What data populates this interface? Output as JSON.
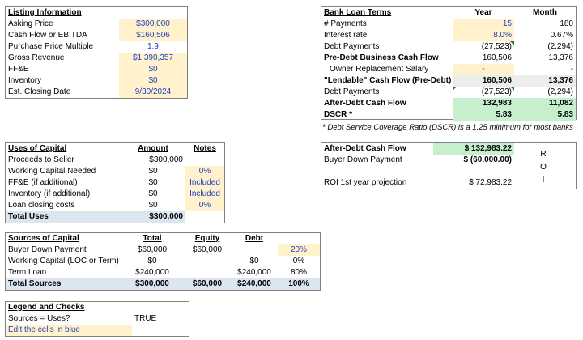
{
  "listing": {
    "title": "Listing Information",
    "rows": [
      {
        "label": "Asking Price",
        "value": "$300,000"
      },
      {
        "label": "Cash Flow or EBITDA",
        "value": "$160,506"
      },
      {
        "label": "Purchase Price Multiple",
        "value": "1.9"
      },
      {
        "label": "Gross Revenue",
        "value": "$1,390,357"
      },
      {
        "label": "FF&E",
        "value": "$0"
      },
      {
        "label": "Inventory",
        "value": "$0"
      },
      {
        "label": "Est. Closing Date",
        "value": "9/30/2024"
      }
    ]
  },
  "bank": {
    "title": "Bank Loan Terms",
    "col_year": "Year",
    "col_month": "Month",
    "rows": [
      {
        "label": "# Payments",
        "year": "15",
        "month": "180"
      },
      {
        "label": "Interest rate",
        "year": "8.0%",
        "month": "0.67%"
      },
      {
        "label": "Debt Payments",
        "year": "(27,523)",
        "month": "(2,294)"
      },
      {
        "label": "Pre-Debt Business Cash Flow",
        "year": "160,506",
        "month": "13,376"
      },
      {
        "label": "Owner Replacement Salary",
        "year": "-",
        "month": "-"
      },
      {
        "label": "\"Lendable\" Cash Flow (Pre-Debt)",
        "year": "160,506",
        "month": "13,376"
      },
      {
        "label": "Debt Payments",
        "year": "(27,523)",
        "month": "(2,294)"
      },
      {
        "label": "After-Debt Cash Flow",
        "year": "132,983",
        "month": "11,082"
      },
      {
        "label": "DSCR *",
        "year": "5.83",
        "month": "5.83"
      }
    ],
    "footnote": "* Debt Service Coverage Ratio (DSCR) is a 1.25 minimum for most banks"
  },
  "uses": {
    "title": "Uses of Capital",
    "col_amount": "Amount",
    "col_notes": "Notes",
    "rows": [
      {
        "label": "Proceeds to Seller",
        "amount": "$300,000",
        "note": ""
      },
      {
        "label": "Working Capital Needed",
        "amount": "$0",
        "note": "0%"
      },
      {
        "label": "FF&E (if additional)",
        "amount": "$0",
        "note": "Included"
      },
      {
        "label": "Inventory (if additional)",
        "amount": "$0",
        "note": "Included"
      },
      {
        "label": "Loan closing costs",
        "amount": "$0",
        "note": "0%"
      }
    ],
    "total_label": "Total Uses",
    "total_amount": "$300,000"
  },
  "roi": {
    "rows": [
      {
        "label": "After-Debt Cash Flow",
        "value": "$ 132,983.22"
      },
      {
        "label": "Buyer Down Payment",
        "value": "$  (60,000.00)"
      },
      {
        "label": "ROI 1st year projection",
        "value": "$   72,983.22"
      }
    ],
    "vertical": [
      "R",
      "O",
      "I"
    ]
  },
  "sources": {
    "title": "Sources of Capital",
    "col_total": "Total",
    "col_equity": "Equity",
    "col_debt": "Debt",
    "rows": [
      {
        "label": "Buyer Down Payment",
        "total": "$60,000",
        "equity": "$60,000",
        "debt": "",
        "pct": "20%"
      },
      {
        "label": "Working Capital (LOC or Term)",
        "total": "$0",
        "equity": "",
        "debt": "$0",
        "pct": "0%"
      },
      {
        "label": "Term Loan",
        "total": "$240,000",
        "equity": "",
        "debt": "$240,000",
        "pct": "80%"
      }
    ],
    "total": {
      "label": "Total Sources",
      "total": "$300,000",
      "equity": "$60,000",
      "debt": "$240,000",
      "pct": "100%"
    }
  },
  "legend": {
    "title": "Legend and Checks",
    "check_label": "Sources = Uses?",
    "check_value": "TRUE",
    "edit_note": "Edit the cells in blue"
  }
}
